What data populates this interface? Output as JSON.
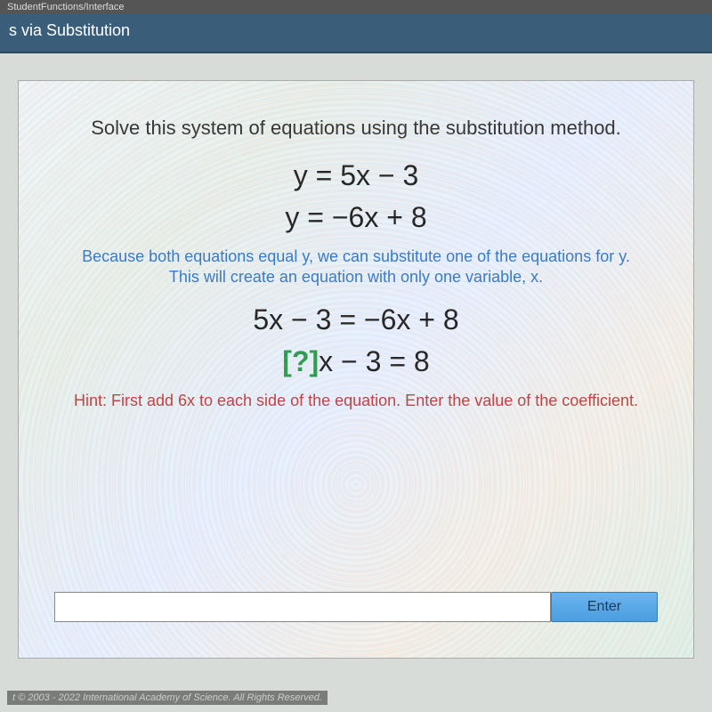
{
  "topbar": {
    "text": "StudentFunctions/Interface"
  },
  "header": {
    "title": "s via Substitution"
  },
  "content": {
    "prompt": "Solve this system of equations using the substitution method.",
    "eq1": "y = 5x − 3",
    "eq2": "y = −6x + 8",
    "explain": "Because both equations equal y, we can substitute one of the equations for y. This will create an equation with only one variable, x.",
    "eq3": "5x − 3 = −6x + 8",
    "eq4_pre": "[?]",
    "eq4_post": "x − 3 = 8",
    "hint": "Hint: First add 6x to each side of the equation.\nEnter the value of the coefficient.",
    "input_value": "",
    "enter_label": "Enter"
  },
  "footer": {
    "copyright": "t © 2003 - 2022 International Academy of Science. All Rights Reserved."
  },
  "colors": {
    "header_bg": "#3a5d7a",
    "explain_text": "#3579c9",
    "hint_text": "#c04040",
    "bracket": "#2a9d4a",
    "enter_bg": "#4a9ee0"
  }
}
